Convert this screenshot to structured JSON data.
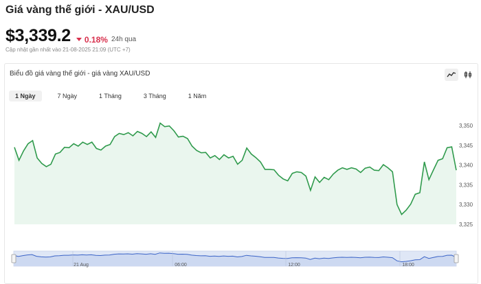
{
  "header": {
    "title": "Giá vàng thế giới - XAU/USD",
    "price": "$3,339.2",
    "change": "0.18%",
    "period": "24h qua",
    "updated": "Cập nhật gần nhất vào 21-08-2025 21:09 (UTC +7)"
  },
  "panel": {
    "title": "Biểu đồ giá vàng thế giới - giá vàng XAU/USD",
    "tools": [
      {
        "icon": "line-chart-icon",
        "active": true
      },
      {
        "icon": "candlestick-icon",
        "active": false
      }
    ],
    "tabs": [
      {
        "label": "1 Ngày",
        "active": true
      },
      {
        "label": "7 Ngày",
        "active": false
      },
      {
        "label": "1 Tháng",
        "active": false
      },
      {
        "label": "3 Tháng",
        "active": false
      },
      {
        "label": "1 Năm",
        "active": false
      }
    ]
  },
  "colors": {
    "line": "#2f9a4c",
    "fill": "#eaf6ee",
    "navigator_line": "#3a63c7",
    "navigator_fill": "#dfe7f6",
    "negative": "#d8304d"
  },
  "chart_data": {
    "type": "area",
    "y_ticks": [
      "3,350",
      "3,345",
      "3,340",
      "3,335",
      "3,330",
      "3,325"
    ],
    "ylim": [
      3325,
      3350
    ],
    "values": [
      3344.5,
      3341.2,
      3343.6,
      3345.4,
      3346.2,
      3341.8,
      3340.4,
      3339.6,
      3340.2,
      3342.8,
      3343.2,
      3344.5,
      3344.4,
      3345.4,
      3344.8,
      3345.8,
      3345.2,
      3345.8,
      3344.2,
      3343.8,
      3344.8,
      3345.2,
      3347.2,
      3348.0,
      3347.7,
      3348.2,
      3347.4,
      3348.5,
      3348.0,
      3347.2,
      3348.4,
      3347.0,
      3350.6,
      3349.7,
      3349.9,
      3348.7,
      3347.1,
      3347.3,
      3346.7,
      3344.8,
      3343.7,
      3343.1,
      3343.2,
      3341.8,
      3342.4,
      3341.4,
      3342.6,
      3341.8,
      3342.2,
      3340.2,
      3341.2,
      3344.3,
      3342.8,
      3341.9,
      3340.8,
      3338.9,
      3338.9,
      3338.8,
      3337.4,
      3336.5,
      3336.0,
      3337.9,
      3338.3,
      3338.1,
      3337.2,
      3333.6,
      3337.0,
      3335.6,
      3336.9,
      3336.3,
      3337.7,
      3338.7,
      3339.3,
      3338.9,
      3339.3,
      3339.0,
      3338.1,
      3339.2,
      3339.5,
      3338.7,
      3338.6,
      3340.1,
      3339.3,
      3338.3,
      3330.0,
      3327.5,
      3328.6,
      3330.1,
      3332.6,
      3333.0,
      3340.8,
      3336.3,
      3338.8,
      3341.2,
      3341.6,
      3344.4,
      3344.6,
      3338.7
    ],
    "navigator": {
      "x_ticks": [
        "21 Aug",
        "06:00",
        "12:00",
        "18:00"
      ]
    }
  }
}
